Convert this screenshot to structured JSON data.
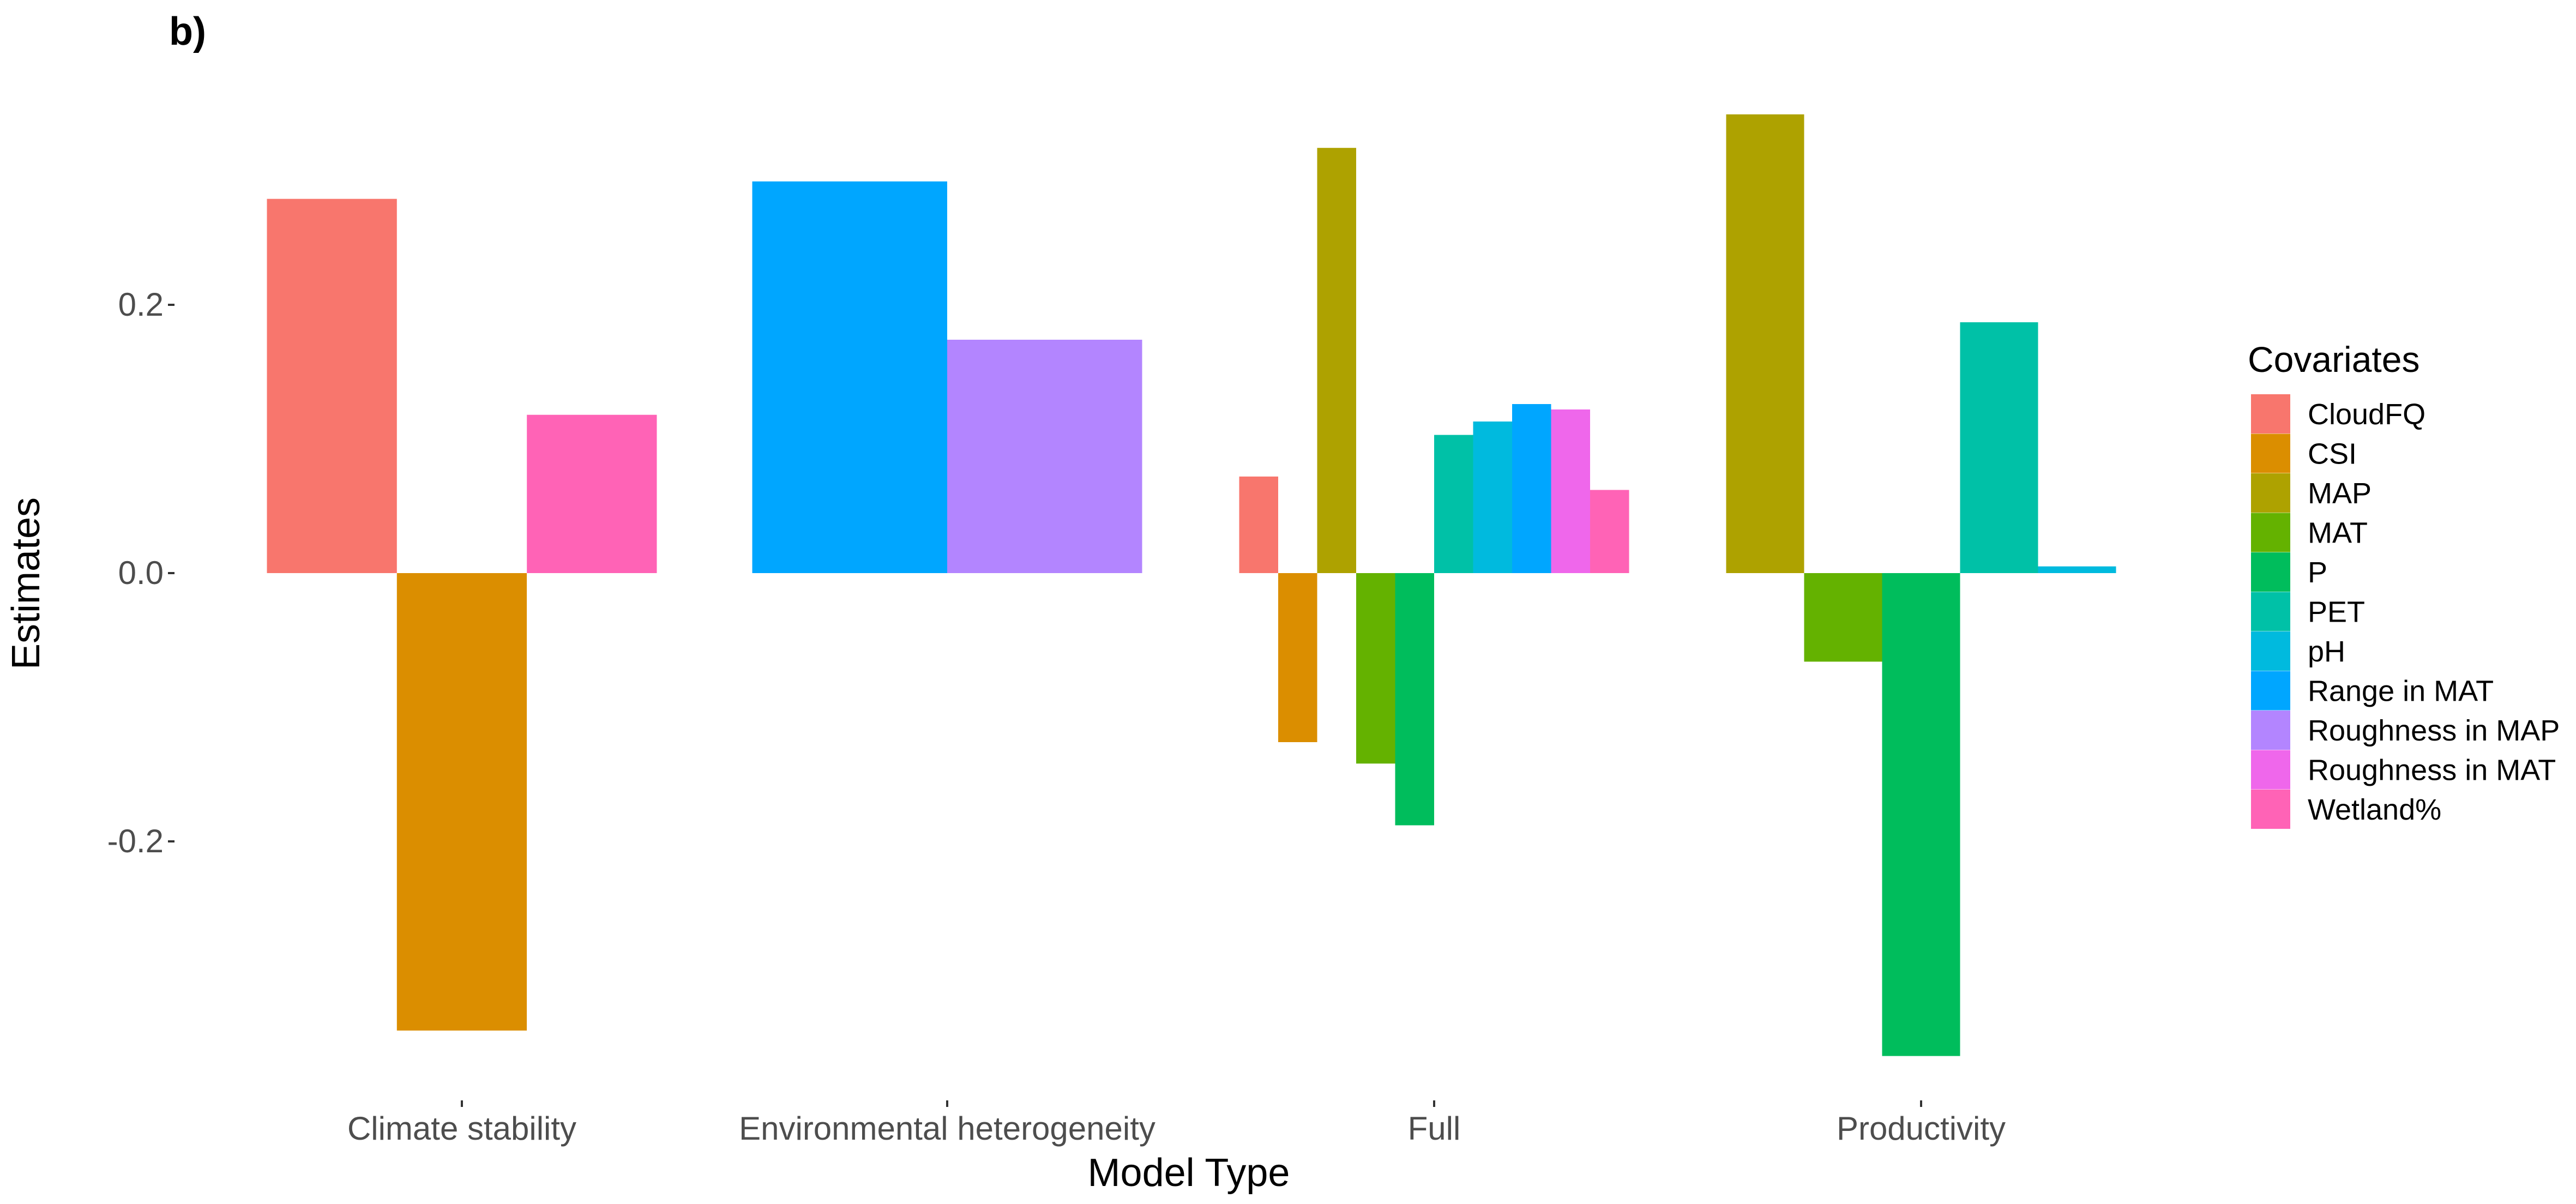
{
  "chart_data": {
    "type": "bar",
    "panel_label": "b)",
    "xlabel": "Model Type",
    "ylabel": "Estimates",
    "ylim": [
      -0.37,
      0.37
    ],
    "yticks": [
      0.2,
      0.0,
      -0.2
    ],
    "ytick_labels": [
      "0.2",
      "0.0",
      "-0.2"
    ],
    "grid": false,
    "legend": {
      "title": "Covariates",
      "position": "right",
      "items": [
        {
          "name": "CloudFQ",
          "color": "#F8766D"
        },
        {
          "name": "CSI",
          "color": "#DB8E00"
        },
        {
          "name": "MAP",
          "color": "#AEA200"
        },
        {
          "name": "MAT",
          "color": "#64B200"
        },
        {
          "name": "P",
          "color": "#00BD5C"
        },
        {
          "name": "PET",
          "color": "#00C1A7"
        },
        {
          "name": "pH",
          "color": "#00BADE"
        },
        {
          "name": "Range in MAT",
          "color": "#00A6FF"
        },
        {
          "name": "Roughness in MAP",
          "color": "#B385FF"
        },
        {
          "name": "Roughness in MAT",
          "color": "#EF67EB"
        },
        {
          "name": "Wetland%",
          "color": "#FF63B6"
        }
      ]
    },
    "categories": [
      "Climate stability",
      "Environmental heterogeneity",
      "Full",
      "Productivity"
    ],
    "groups": [
      {
        "category": "Climate stability",
        "bars": [
          {
            "covariate": "CloudFQ",
            "value": 0.279
          },
          {
            "covariate": "CSI",
            "value": -0.341
          },
          {
            "covariate": "Wetland%",
            "value": 0.118
          }
        ]
      },
      {
        "category": "Environmental heterogeneity",
        "bars": [
          {
            "covariate": "Range in MAT",
            "value": 0.292
          },
          {
            "covariate": "Roughness in MAP",
            "value": 0.174
          }
        ]
      },
      {
        "category": "Full",
        "bars": [
          {
            "covariate": "CloudFQ",
            "value": 0.072
          },
          {
            "covariate": "CSI",
            "value": -0.126
          },
          {
            "covariate": "MAP",
            "value": 0.317
          },
          {
            "covariate": "MAT",
            "value": -0.142
          },
          {
            "covariate": "P",
            "value": -0.188
          },
          {
            "covariate": "PET",
            "value": 0.103
          },
          {
            "covariate": "pH",
            "value": 0.113
          },
          {
            "covariate": "Range in MAT",
            "value": 0.126
          },
          {
            "covariate": "Roughness in MAT",
            "value": 0.122
          },
          {
            "covariate": "Wetland%",
            "value": 0.062
          }
        ]
      },
      {
        "category": "Productivity",
        "bars": [
          {
            "covariate": "MAP",
            "value": 0.342
          },
          {
            "covariate": "MAT",
            "value": -0.066
          },
          {
            "covariate": "P",
            "value": -0.36
          },
          {
            "covariate": "PET",
            "value": 0.187
          },
          {
            "covariate": "pH",
            "value": 0.005
          }
        ]
      }
    ]
  }
}
